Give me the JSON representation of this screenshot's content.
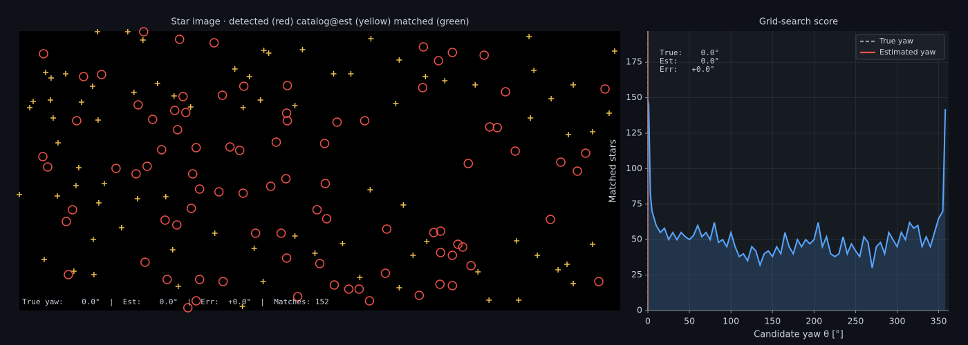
{
  "chart_data": [
    {
      "type": "scatter",
      "title": "Star image  ·  detected (red)  catalog@est (yellow)  matched (green)",
      "footer": "True yaw:    0.0°  |  Est:    0.0°  |  Err:  +0.0°  |  Matches: 152",
      "xlim": [
        0,
        870
      ],
      "ylim": [
        405,
        0
      ],
      "series": [
        {
          "marker": "plus",
          "color": "#f2c14e",
          "x": [
            113,
            157,
            179,
            361,
            354,
            410,
            509,
            550,
            738,
            862,
            38,
            46,
            67,
            106,
            20,
            15,
            45,
            49,
            56,
            90,
            114,
            166,
            200,
            224,
            248,
            312,
            333,
            349,
            324,
            399,
            455,
            480,
            545,
            588,
            616,
            660,
            770,
            745,
            802,
            830,
            795,
            740,
            854,
            86,
            82,
            123,
            171,
            115,
            55,
            148,
            107,
            36,
            79,
            108,
            212,
            222,
            283,
            340,
            399,
            428,
            468,
            508,
            556,
            570,
            590,
            664,
            720,
            750,
            780,
            802,
            793,
            830,
            723,
            680,
            550,
            493,
            353,
            323,
            230,
            0
          ],
          "y": [
            1,
            1,
            13,
            32,
            28,
            27,
            11,
            42,
            8,
            29,
            60,
            68,
            62,
            80,
            102,
            111,
            100,
            126,
            162,
            103,
            129,
            89,
            76,
            94,
            110,
            55,
            66,
            100,
            111,
            108,
            62,
            62,
            105,
            66,
            72,
            78,
            98,
            57,
            78,
            146,
            150,
            126,
            119,
            198,
            224,
            221,
            243,
            249,
            239,
            285,
            302,
            331,
            348,
            353,
            240,
            317,
            293,
            315,
            297,
            322,
            308,
            230,
            252,
            325,
            305,
            349,
            304,
            325,
            346,
            366,
            338,
            309,
            390,
            390,
            372,
            357,
            363,
            399,
            370,
            237
          ]
        },
        {
          "marker": "circle",
          "color": "#f0524a",
          "x": [
            35,
            232,
            282,
            180,
            93,
            119,
            83,
            172,
            193,
            225,
            241,
            237,
            294,
            325,
            388,
            387,
            388,
            460,
            500,
            585,
            627,
            607,
            673,
            584,
            704,
            681,
            692,
            718,
            848,
            820,
            784,
            808,
            650,
            229,
            206,
            256,
            305,
            319,
            372,
            442,
            34,
            41,
            140,
            169,
            185,
            251,
            261,
            289,
            324,
            364,
            386,
            443,
            77,
            68,
            211,
            228,
            249,
            342,
            379,
            431,
            445,
            532,
            600,
            610,
            635,
            642,
            610,
            627,
            387,
            435,
            654,
            769,
            71,
            214,
            261,
            295,
            456,
            477,
            492,
            530,
            609,
            627,
            839,
            579,
            507,
            403,
            256,
            244,
            182
          ],
          "y": [
            33,
            12,
            17,
            1,
            66,
            63,
            130,
            107,
            128,
            115,
            118,
            95,
            93,
            80,
            79,
            119,
            130,
            132,
            130,
            23,
            31,
            43,
            35,
            82,
            88,
            139,
            140,
            174,
            84,
            177,
            190,
            203,
            192,
            143,
            172,
            169,
            168,
            173,
            161,
            163,
            182,
            197,
            199,
            207,
            196,
            207,
            229,
            233,
            235,
            225,
            214,
            221,
            259,
            276,
            274,
            281,
            257,
            293,
            293,
            259,
            272,
            287,
            292,
            290,
            309,
            313,
            321,
            325,
            329,
            337,
            340,
            273,
            353,
            360,
            360,
            363,
            368,
            374,
            374,
            351,
            367,
            369,
            363,
            383,
            391,
            385,
            391,
            401,
            335
          ]
        }
      ]
    },
    {
      "type": "line",
      "title": "Grid-search score",
      "xlabel": "Candidate yaw θ [°]",
      "ylabel": "Matched stars",
      "xlim": [
        0,
        362
      ],
      "ylim": [
        0,
        197
      ],
      "xticks": [
        0,
        50,
        100,
        150,
        200,
        250,
        300,
        350
      ],
      "yticks": [
        0,
        25,
        50,
        75,
        100,
        125,
        150,
        175
      ],
      "grid": true,
      "x": [
        0,
        1,
        3,
        5,
        10,
        15,
        20,
        25,
        30,
        35,
        40,
        45,
        50,
        55,
        60,
        65,
        70,
        75,
        80,
        85,
        90,
        95,
        100,
        105,
        110,
        115,
        120,
        125,
        130,
        135,
        140,
        145,
        150,
        155,
        160,
        165,
        170,
        175,
        180,
        185,
        190,
        195,
        200,
        205,
        210,
        215,
        220,
        225,
        230,
        235,
        240,
        245,
        250,
        255,
        260,
        265,
        270,
        275,
        280,
        285,
        290,
        295,
        300,
        305,
        310,
        315,
        320,
        325,
        330,
        335,
        340,
        345,
        350,
        355,
        358
      ],
      "series": [
        {
          "color": "#58a6ff",
          "values": [
            148,
            145,
            82,
            70,
            60,
            55,
            58,
            50,
            55,
            50,
            55,
            52,
            50,
            53,
            60,
            52,
            55,
            50,
            62,
            48,
            50,
            45,
            55,
            45,
            38,
            40,
            35,
            45,
            42,
            32,
            40,
            42,
            38,
            45,
            40,
            55,
            45,
            40,
            50,
            45,
            50,
            47,
            50,
            62,
            45,
            52,
            40,
            38,
            40,
            52,
            40,
            47,
            42,
            38,
            52,
            48,
            30,
            45,
            48,
            40,
            55,
            50,
            45,
            55,
            50,
            62,
            58,
            60,
            45,
            52,
            45,
            55,
            65,
            70,
            142
          ]
        }
      ],
      "vlines": [
        {
          "name": "True yaw",
          "color": "#8b949e",
          "dash": true,
          "value": 0
        },
        {
          "name": "Estimated yaw",
          "color": "#f0524a",
          "dash": false,
          "value": 0
        }
      ],
      "legend": "upper right",
      "annotation": [
        "True:    0.0°",
        "Est:     0.0°",
        "Err:   +0.0°"
      ]
    }
  ]
}
